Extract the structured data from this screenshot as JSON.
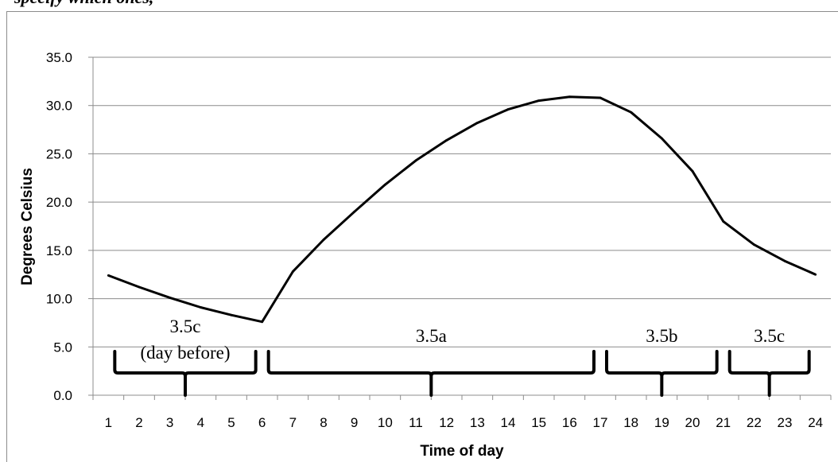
{
  "caption": "specify which ones,",
  "chart_data": {
    "type": "line",
    "title": "",
    "xlabel": "Time of day",
    "ylabel": "Degrees Celsius",
    "categories": [
      "1",
      "2",
      "3",
      "4",
      "5",
      "6",
      "7",
      "8",
      "9",
      "10",
      "11",
      "12",
      "13",
      "14",
      "15",
      "16",
      "17",
      "18",
      "19",
      "20",
      "21",
      "22",
      "23",
      "24"
    ],
    "y_ticks": [
      "0.0",
      "5.0",
      "10.0",
      "15.0",
      "20.0",
      "25.0",
      "30.0",
      "35.0"
    ],
    "ylim": [
      0,
      35
    ],
    "grid": "horizontal",
    "series": [
      {
        "values": [
          12.4,
          11.2,
          10.1,
          9.1,
          8.3,
          7.6,
          12.8,
          16.1,
          19.0,
          21.8,
          24.3,
          26.4,
          28.2,
          29.6,
          30.5,
          30.9,
          30.8,
          29.3,
          26.6,
          23.2,
          18.0,
          15.6,
          13.9,
          12.5
        ]
      }
    ],
    "annotations": [
      {
        "label_lines": [
          "3.5c",
          "(day before)"
        ],
        "from_hour": 1,
        "to_hour": 6
      },
      {
        "label_lines": [
          "3.5a"
        ],
        "from_hour": 6,
        "to_hour": 17
      },
      {
        "label_lines": [
          "3.5b"
        ],
        "from_hour": 17,
        "to_hour": 21
      },
      {
        "label_lines": [
          "3.5c"
        ],
        "from_hour": 21,
        "to_hour": 24
      }
    ]
  },
  "colors": {
    "line": "#000000",
    "grid": "#8c8c8c",
    "frame": "#8c8c8c"
  }
}
